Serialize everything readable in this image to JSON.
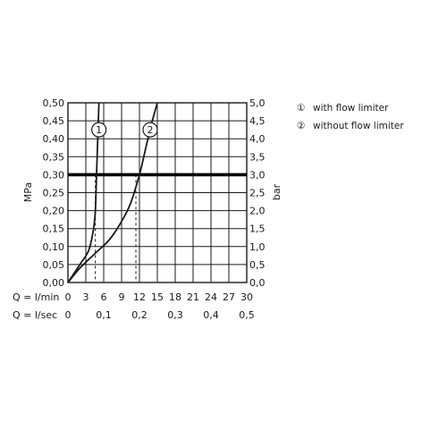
{
  "chart_data": {
    "type": "line",
    "left_axis": {
      "label": "MPa",
      "ticks": [
        "0,00",
        "0,05",
        "0,10",
        "0,15",
        "0,20",
        "0,25",
        "0,30",
        "0,35",
        "0,40",
        "0,45",
        "0,50"
      ],
      "ylim": [
        0,
        0.5
      ]
    },
    "right_axis": {
      "label": "bar",
      "ticks": [
        "0,0",
        "0,5",
        "1,0",
        "1,5",
        "2,0",
        "2,5",
        "3,0",
        "3,5",
        "4,0",
        "4,5",
        "5,0"
      ],
      "ylim": [
        0,
        5
      ]
    },
    "x_axis_lmin": {
      "label": "Q = l/min",
      "ticks": [
        "0",
        "3",
        "6",
        "9",
        "12",
        "15",
        "18",
        "21",
        "24",
        "27",
        "30"
      ],
      "xlim": [
        0,
        30
      ]
    },
    "x_axis_lsec": {
      "label": "Q = l/sec",
      "ticks": [
        "0",
        "0,1",
        "0,2",
        "0,3",
        "0,4",
        "0,5"
      ],
      "values": [
        0,
        0.1,
        0.2,
        0.3,
        0.4,
        0.5
      ]
    },
    "grid": true,
    "reference_line": {
      "y_mpa": 0.3,
      "style": "bold"
    },
    "series": [
      {
        "marker": "①",
        "name": "with flow limiter",
        "x_lmin": [
          0,
          2,
          3.5,
          4.3,
          4.6,
          4.8,
          5.0,
          5.2
        ],
        "y_mpa": [
          0,
          0.05,
          0.09,
          0.15,
          0.2,
          0.3,
          0.4,
          0.5
        ],
        "marker_at": {
          "x_lmin": 5.2,
          "y_mpa": 0.425
        },
        "drop_line_x_lmin": 4.6
      },
      {
        "marker": "②",
        "name": "without flow limiter",
        "x_lmin": [
          0,
          2,
          4.5,
          7,
          9,
          10.5,
          12,
          13,
          14,
          15
        ],
        "y_mpa": [
          0,
          0.04,
          0.08,
          0.12,
          0.17,
          0.22,
          0.3,
          0.37,
          0.44,
          0.5
        ],
        "marker_at": {
          "x_lmin": 13.8,
          "y_mpa": 0.425
        },
        "drop_line_x_lmin": 11.4
      }
    ],
    "legend": {
      "position": "right",
      "items": [
        {
          "marker": "①",
          "label": "with flow limiter"
        },
        {
          "marker": "②",
          "label": "without flow limiter"
        }
      ]
    }
  }
}
